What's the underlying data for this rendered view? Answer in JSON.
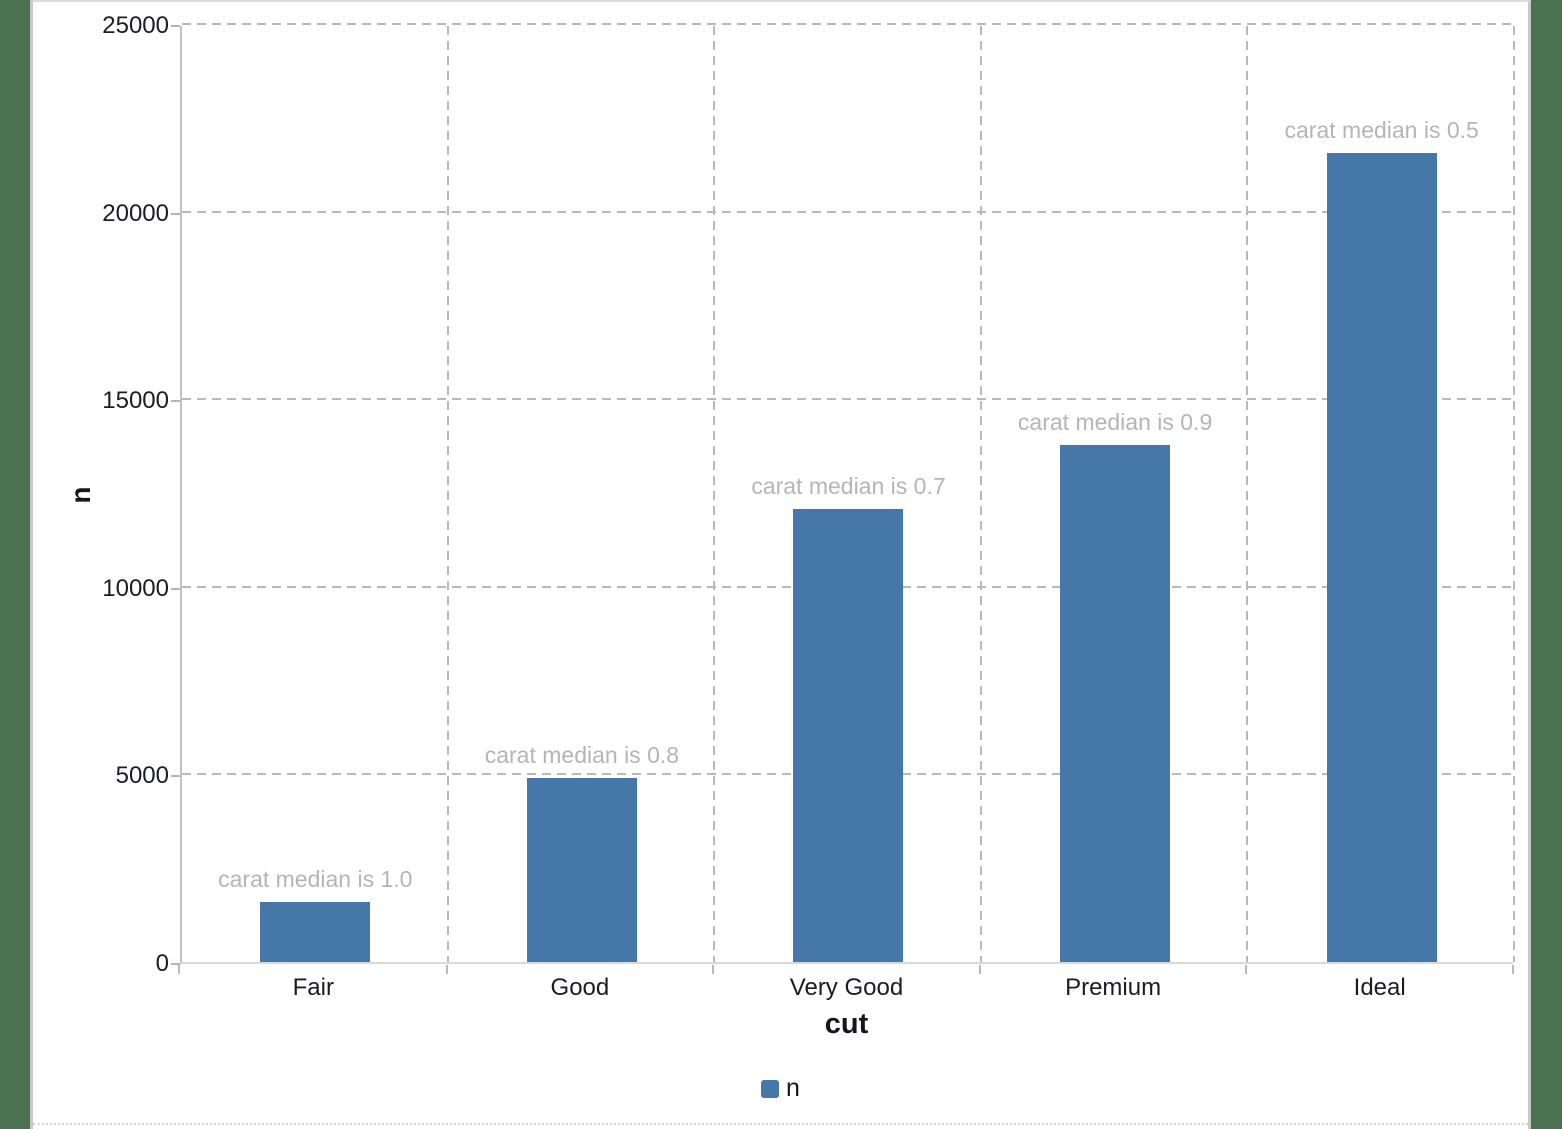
{
  "app": {
    "background_color": "#4a7150",
    "sheet_color": "#ffffff"
  },
  "chart_data": {
    "type": "bar",
    "title": "",
    "categories": [
      "Fair",
      "Good",
      "Very Good",
      "Premium",
      "Ideal"
    ],
    "series": [
      {
        "name": "n",
        "color": "#4577a8",
        "values": [
          1610,
          4906,
          12082,
          13791,
          21551
        ]
      }
    ],
    "bar_annotations": [
      "carat median is 1.0",
      "carat median is 0.8",
      "carat median is 0.7",
      "carat median is 0.9",
      "carat median is 0.5"
    ],
    "annotation_color": "#b5b5b5",
    "xlabel": "cut",
    "ylabel": "n",
    "ylim": [
      0,
      25000
    ],
    "ytick_interval": 5000,
    "ytick_labels": [
      "0",
      "5000",
      "10000",
      "15000",
      "20000",
      "25000"
    ],
    "grid": "dashed horizontal gridlines and vertical category separators",
    "gridline_color": "#b9b9b9",
    "legend": {
      "position": "bottom-center",
      "entries": [
        {
          "label": "n",
          "swatch_color": "#4577a8"
        }
      ]
    }
  }
}
